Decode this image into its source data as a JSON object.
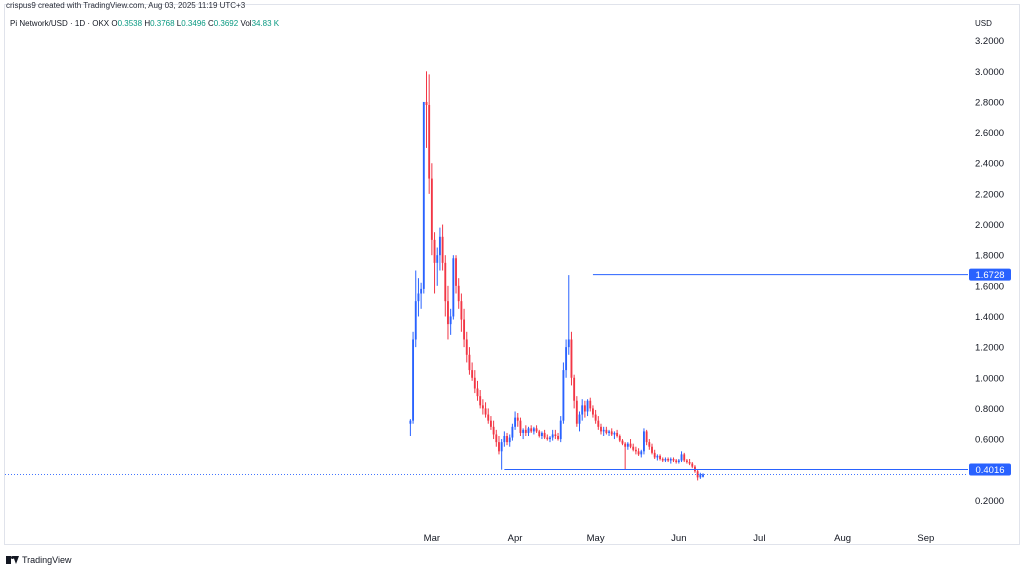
{
  "attribution": "crispus9 created with TradingView.com, Aug 03, 2025 11:19 UTC+3",
  "legend": {
    "symbol": "Pi Network/USD · 1D · OKX",
    "o_label": "O",
    "o_value": "0.3538",
    "h_label": "H",
    "h_value": "0.3768",
    "l_label": "L",
    "l_value": "0.3496",
    "c_label": "C",
    "c_value": "0.3692",
    "vol_label": "Vol",
    "vol_value": "34.83 K"
  },
  "footer": {
    "brand": "TradingView"
  },
  "colors": {
    "up": "#2962ff",
    "down": "#f23645",
    "line": "#2962ff",
    "badge": "#2962ff",
    "text": "#131722"
  },
  "chart_data": {
    "type": "candlestick",
    "currency": "USD",
    "y_ticks": [
      "3.2000",
      "3.0000",
      "2.8000",
      "2.6000",
      "2.4000",
      "2.2000",
      "2.0000",
      "1.8000",
      "1.6000",
      "1.4000",
      "1.2000",
      "1.0000",
      "0.8000",
      "0.6000",
      "0.2000"
    ],
    "ylim": [
      0.0,
      3.25
    ],
    "x_ticks": [
      {
        "label": "Mar",
        "day": 8
      },
      {
        "label": "Apr",
        "day": 39
      },
      {
        "label": "May",
        "day": 69
      },
      {
        "label": "Jun",
        "day": 100
      },
      {
        "label": "Jul",
        "day": 130
      },
      {
        "label": "Aug",
        "day": 161
      },
      {
        "label": "Sep",
        "day": 192
      }
    ],
    "xlim": [
      -151,
      201
    ],
    "levels": [
      {
        "label": "1.6728",
        "value": 1.6728,
        "from_day": 68
      },
      {
        "label": "0.4016",
        "value": 0.4016,
        "from_day": 35
      }
    ],
    "last_price": 0.3692,
    "candles": [
      [
        0.7,
        0.73,
        0.62,
        0.72
      ],
      [
        0.72,
        1.3,
        0.7,
        1.25
      ],
      [
        1.25,
        1.7,
        1.2,
        1.5
      ],
      [
        1.5,
        1.65,
        1.4,
        1.55
      ],
      [
        1.55,
        1.62,
        1.45,
        1.58
      ],
      [
        1.58,
        2.8,
        1.55,
        2.8
      ],
      [
        2.8,
        3.0,
        2.5,
        2.78
      ],
      [
        2.78,
        2.98,
        2.2,
        2.3
      ],
      [
        2.3,
        2.4,
        1.8,
        1.9
      ],
      [
        1.9,
        1.95,
        1.55,
        1.75
      ],
      [
        1.75,
        1.85,
        1.6,
        1.8
      ],
      [
        1.8,
        1.98,
        1.7,
        1.92
      ],
      [
        1.92,
        2.0,
        1.7,
        1.75
      ],
      [
        1.75,
        1.8,
        1.4,
        1.5
      ],
      [
        1.5,
        1.6,
        1.25,
        1.35
      ],
      [
        1.35,
        1.45,
        1.28,
        1.4
      ],
      [
        1.4,
        1.8,
        1.38,
        1.78
      ],
      [
        1.78,
        1.8,
        1.55,
        1.6
      ],
      [
        1.6,
        1.65,
        1.45,
        1.5
      ],
      [
        1.5,
        1.55,
        1.3,
        1.38
      ],
      [
        1.38,
        1.45,
        1.2,
        1.25
      ],
      [
        1.25,
        1.3,
        1.1,
        1.15
      ],
      [
        1.15,
        1.2,
        1.02,
        1.05
      ],
      [
        1.05,
        1.1,
        0.98,
        1.0
      ],
      [
        1.0,
        1.05,
        0.9,
        0.93
      ],
      [
        0.93,
        0.98,
        0.85,
        0.88
      ],
      [
        0.88,
        0.92,
        0.8,
        0.82
      ],
      [
        0.82,
        0.86,
        0.76,
        0.8
      ],
      [
        0.8,
        0.84,
        0.74,
        0.76
      ],
      [
        0.76,
        0.8,
        0.7,
        0.72
      ],
      [
        0.72,
        0.75,
        0.66,
        0.68
      ],
      [
        0.68,
        0.72,
        0.6,
        0.63
      ],
      [
        0.63,
        0.66,
        0.55,
        0.58
      ],
      [
        0.58,
        0.62,
        0.5,
        0.52
      ],
      [
        0.52,
        0.6,
        0.4,
        0.58
      ],
      [
        0.58,
        0.65,
        0.55,
        0.62
      ],
      [
        0.62,
        0.64,
        0.56,
        0.58
      ],
      [
        0.58,
        0.63,
        0.55,
        0.61
      ],
      [
        0.61,
        0.7,
        0.59,
        0.68
      ],
      [
        0.68,
        0.78,
        0.66,
        0.74
      ],
      [
        0.74,
        0.77,
        0.68,
        0.72
      ],
      [
        0.72,
        0.74,
        0.62,
        0.64
      ],
      [
        0.64,
        0.67,
        0.6,
        0.66
      ],
      [
        0.66,
        0.69,
        0.62,
        0.64
      ],
      [
        0.64,
        0.68,
        0.62,
        0.67
      ],
      [
        0.67,
        0.69,
        0.64,
        0.65
      ],
      [
        0.65,
        0.68,
        0.63,
        0.67
      ],
      [
        0.67,
        0.69,
        0.64,
        0.65
      ],
      [
        0.65,
        0.66,
        0.61,
        0.62
      ],
      [
        0.62,
        0.65,
        0.6,
        0.64
      ],
      [
        0.64,
        0.66,
        0.6,
        0.61
      ],
      [
        0.61,
        0.63,
        0.59,
        0.6
      ],
      [
        0.6,
        0.62,
        0.58,
        0.61
      ],
      [
        0.61,
        0.66,
        0.59,
        0.63
      ],
      [
        0.63,
        0.66,
        0.6,
        0.62
      ],
      [
        0.62,
        0.64,
        0.59,
        0.6
      ],
      [
        0.6,
        0.75,
        0.58,
        0.72
      ],
      [
        0.72,
        1.1,
        0.7,
        1.05
      ],
      [
        1.05,
        1.25,
        1.0,
        1.2
      ],
      [
        1.2,
        1.67,
        1.15,
        1.25
      ],
      [
        1.25,
        1.3,
        0.95,
        1.0
      ],
      [
        1.0,
        1.02,
        0.8,
        0.85
      ],
      [
        0.85,
        0.88,
        0.68,
        0.7
      ],
      [
        0.7,
        0.78,
        0.65,
        0.76
      ],
      [
        0.76,
        0.86,
        0.72,
        0.82
      ],
      [
        0.82,
        0.85,
        0.74,
        0.78
      ],
      [
        0.78,
        0.86,
        0.75,
        0.85
      ],
      [
        0.85,
        0.87,
        0.78,
        0.8
      ],
      [
        0.8,
        0.82,
        0.74,
        0.76
      ],
      [
        0.76,
        0.79,
        0.7,
        0.72
      ],
      [
        0.72,
        0.75,
        0.66,
        0.68
      ],
      [
        0.68,
        0.7,
        0.63,
        0.65
      ],
      [
        0.65,
        0.68,
        0.62,
        0.66
      ],
      [
        0.66,
        0.68,
        0.63,
        0.64
      ],
      [
        0.64,
        0.66,
        0.62,
        0.65
      ],
      [
        0.65,
        0.67,
        0.62,
        0.63
      ],
      [
        0.63,
        0.65,
        0.6,
        0.64
      ],
      [
        0.64,
        0.66,
        0.61,
        0.62
      ],
      [
        0.62,
        0.63,
        0.58,
        0.59
      ],
      [
        0.59,
        0.6,
        0.56,
        0.57
      ],
      [
        0.57,
        0.58,
        0.4,
        0.55
      ],
      [
        0.55,
        0.58,
        0.53,
        0.57
      ],
      [
        0.57,
        0.6,
        0.54,
        0.55
      ],
      [
        0.55,
        0.57,
        0.52,
        0.53
      ],
      [
        0.53,
        0.55,
        0.5,
        0.52
      ],
      [
        0.52,
        0.54,
        0.49,
        0.5
      ],
      [
        0.5,
        0.53,
        0.48,
        0.52
      ],
      [
        0.52,
        0.67,
        0.5,
        0.65
      ],
      [
        0.65,
        0.66,
        0.56,
        0.58
      ],
      [
        0.58,
        0.6,
        0.53,
        0.55
      ],
      [
        0.55,
        0.57,
        0.5,
        0.51
      ],
      [
        0.51,
        0.53,
        0.47,
        0.48
      ],
      [
        0.48,
        0.5,
        0.46,
        0.49
      ],
      [
        0.49,
        0.5,
        0.46,
        0.47
      ],
      [
        0.47,
        0.48,
        0.45,
        0.46
      ],
      [
        0.46,
        0.48,
        0.45,
        0.47
      ],
      [
        0.47,
        0.48,
        0.45,
        0.46
      ],
      [
        0.46,
        0.48,
        0.44,
        0.47
      ],
      [
        0.47,
        0.48,
        0.45,
        0.46
      ],
      [
        0.46,
        0.47,
        0.44,
        0.45
      ],
      [
        0.45,
        0.47,
        0.44,
        0.46
      ],
      [
        0.46,
        0.52,
        0.45,
        0.5
      ],
      [
        0.5,
        0.51,
        0.45,
        0.46
      ],
      [
        0.46,
        0.47,
        0.44,
        0.45
      ],
      [
        0.45,
        0.47,
        0.43,
        0.44
      ],
      [
        0.44,
        0.45,
        0.41,
        0.42
      ],
      [
        0.42,
        0.43,
        0.38,
        0.39
      ],
      [
        0.39,
        0.4,
        0.33,
        0.35
      ],
      [
        0.35,
        0.38,
        0.34,
        0.37
      ],
      [
        0.3538,
        0.3768,
        0.3496,
        0.3692
      ]
    ]
  }
}
